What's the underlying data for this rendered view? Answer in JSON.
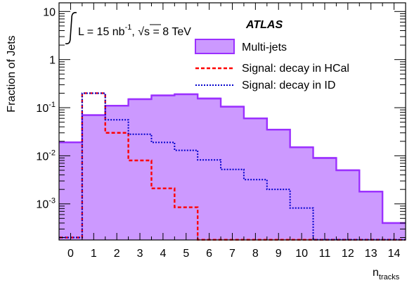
{
  "chart_data": {
    "type": "histogram",
    "ylabel": "Fraction of Jets",
    "xlabel_main": "n",
    "xlabel_sub": "tracks",
    "x_ticks": [
      "0",
      "1",
      "2",
      "3",
      "4",
      "5",
      "6",
      "7",
      "8",
      "9",
      "10",
      "11",
      "12",
      "13",
      "14"
    ],
    "y_ticks": [
      {
        "base": "10",
        "exp": "-3"
      },
      {
        "base": "10",
        "exp": "-2"
      },
      {
        "base": "10",
        "exp": "-1"
      },
      {
        "base": "1",
        "exp": ""
      },
      {
        "base": "10",
        "exp": ""
      }
    ],
    "xlim": [
      -0.5,
      14.5
    ],
    "ylim_log": [
      -3.75,
      1.18
    ],
    "y_scale": "log",
    "annotations": {
      "atlas": "ATLAS",
      "lumi_L": "L = 15 nb",
      "lumi_exp": "-1",
      "lumi_sep": ", ",
      "lumi_sqrt": "√s",
      "lumi_energy": " = 8 TeV"
    },
    "legend_position": "top-right",
    "series": [
      {
        "name": "Multi-jets",
        "style": "filled",
        "color": "#9b30ff",
        "fill": "#cc99ff",
        "bin_edges": [
          -0.5,
          0.5,
          1.5,
          2.5,
          3.5,
          4.5,
          5.5,
          6.5,
          7.5,
          8.5,
          9.5,
          10.5,
          11.5,
          12.5,
          13.5,
          14.5
        ],
        "values": [
          0.019,
          0.07,
          0.11,
          0.15,
          0.18,
          0.19,
          0.155,
          0.105,
          0.06,
          0.035,
          0.015,
          0.009,
          0.005,
          0.0018,
          0.0004
        ]
      },
      {
        "name": "Signal: decay in HCal",
        "style": "dashed",
        "color": "#ff0000",
        "bin_edges": [
          -0.5,
          0.5,
          1.5,
          2.5,
          3.5,
          4.5,
          5.5,
          6.5,
          7.5,
          8.5,
          9.5,
          10.5,
          11.5,
          12.5,
          13.5,
          14.5
        ],
        "values": [
          0.0002,
          0.2,
          0.03,
          0.008,
          0.0021,
          0.00085,
          0.00018,
          0.00018,
          0.00018,
          0.00018,
          0.00018,
          0.00018,
          0.00018,
          0.00018,
          0.00018
        ]
      },
      {
        "name": "Signal: decay in ID",
        "style": "dotted",
        "color": "#0000cc",
        "bin_edges": [
          -0.5,
          0.5,
          1.5,
          2.5,
          3.5,
          4.5,
          5.5,
          6.5,
          7.5,
          8.5,
          9.5,
          10.5,
          11.5,
          12.5,
          13.5,
          14.5
        ],
        "values": [
          0.0002,
          0.2,
          0.056,
          0.028,
          0.019,
          0.013,
          0.0082,
          0.0052,
          0.0032,
          0.002,
          0.00082,
          0.00018,
          0.00018,
          0.00018,
          0.00018
        ]
      }
    ]
  }
}
